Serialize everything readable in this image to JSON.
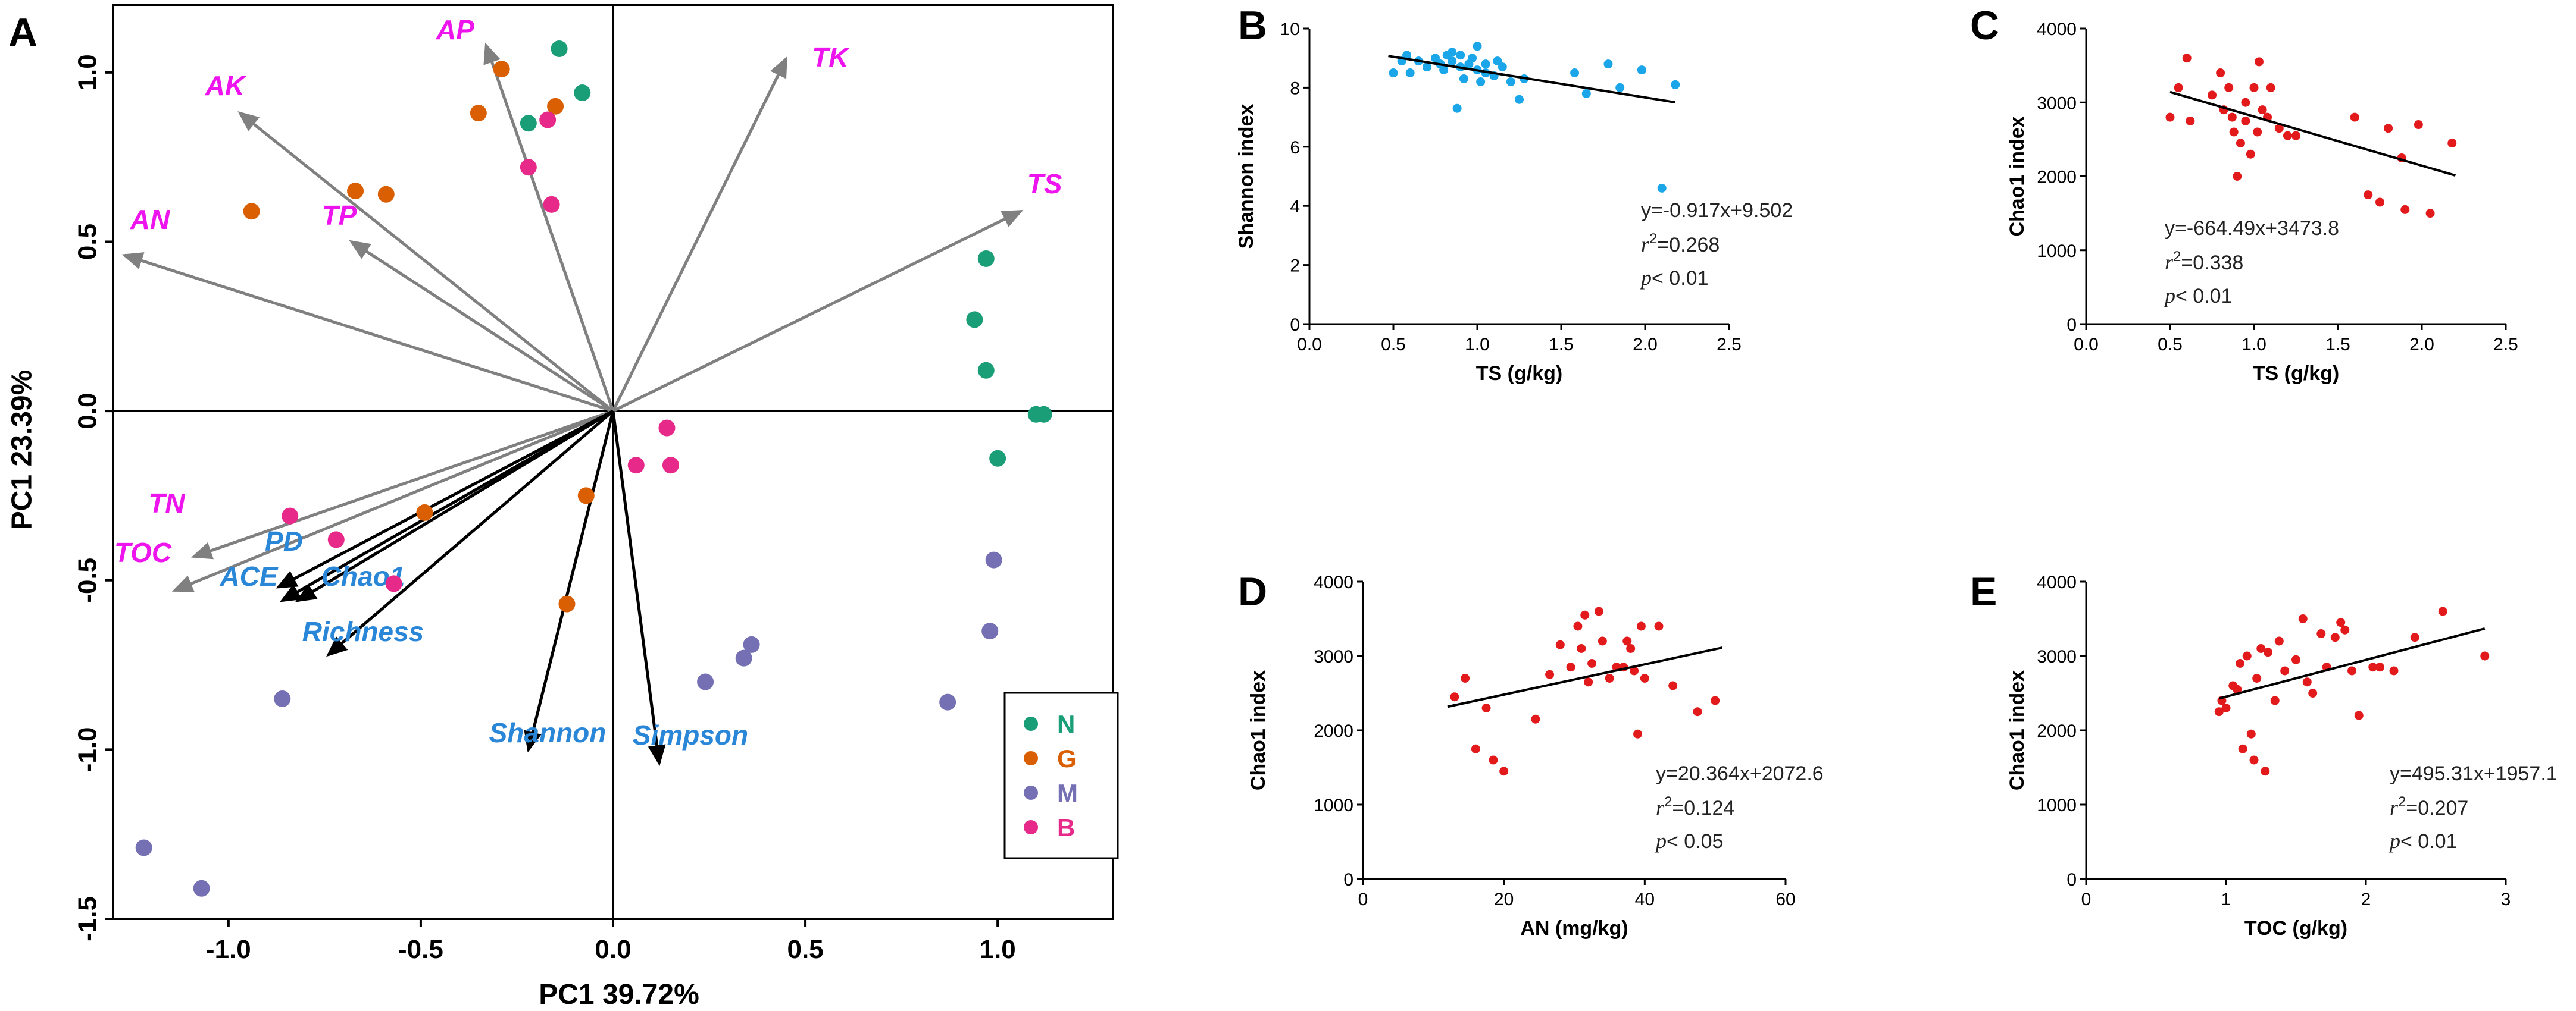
{
  "chart_data": [
    {
      "panel": "A",
      "type": "scatter",
      "subtype": "biplot",
      "xlabel": "PC1  39.72%",
      "ylabel": "PC1  23.39%",
      "xlim": [
        -1.3,
        1.3
      ],
      "ylim": [
        -1.5,
        1.2
      ],
      "xticks": [
        -1.0,
        -0.5,
        0.0,
        0.5,
        1.0
      ],
      "xtick_labels": [
        "-1.0",
        "-0.5",
        "0.0",
        "0.5",
        "1.0"
      ],
      "yticks": [
        -1.5,
        -1.0,
        -0.5,
        0.0,
        0.5,
        1.0
      ],
      "ytick_labels": [
        "-1.5",
        "-1.0",
        "-0.5",
        "0.0",
        "0.5",
        "1.0"
      ],
      "env_color": "#ee14ee",
      "div_color": "#2a86d6",
      "env_arrow_color": "#808080",
      "div_arrow_color": "#000000",
      "env_vectors": [
        {
          "name": "AP",
          "x": -0.33,
          "y": 1.08
        },
        {
          "name": "TK",
          "x": 0.45,
          "y": 1.04
        },
        {
          "name": "AK",
          "x": -0.97,
          "y": 0.88
        },
        {
          "name": "AN",
          "x": -1.27,
          "y": 0.46
        },
        {
          "name": "TP",
          "x": -0.68,
          "y": 0.5
        },
        {
          "name": "TS",
          "x": 1.06,
          "y": 0.59
        },
        {
          "name": "TN",
          "x": -1.09,
          "y": -0.43
        },
        {
          "name": "TOC",
          "x": -1.14,
          "y": -0.53
        }
      ],
      "env_labels": [
        "AP",
        "TK",
        "AK",
        "AN",
        "TP",
        "TS",
        "TN",
        "TOC"
      ],
      "div_vectors": [
        {
          "name": "PD",
          "x": -0.87,
          "y": -0.52
        },
        {
          "name": "ACE",
          "x": -0.86,
          "y": -0.56
        },
        {
          "name": "Chao1",
          "x": -0.82,
          "y": -0.56
        },
        {
          "name": "Richness",
          "x": -0.74,
          "y": -0.72
        },
        {
          "name": "Shannon",
          "x": -0.22,
          "y": -1.0
        },
        {
          "name": "Simpson",
          "x": 0.12,
          "y": -1.04
        }
      ],
      "div_labels": [
        "PD",
        "ACE",
        "Chao1",
        "Richness",
        "Shannon",
        "Simpson"
      ],
      "groups": [
        {
          "name": "N",
          "color": "#1a9e77",
          "points": [
            [
              -0.14,
              1.07
            ],
            [
              -0.08,
              0.94
            ],
            [
              -0.22,
              0.85
            ],
            [
              0.97,
              0.45
            ],
            [
              0.94,
              0.27
            ],
            [
              0.97,
              0.12
            ],
            [
              1.1,
              -0.01
            ],
            [
              1.12,
              -0.01
            ],
            [
              1.0,
              -0.14
            ]
          ]
        },
        {
          "name": "G",
          "color": "#d95f02",
          "points": [
            [
              -0.29,
              1.01
            ],
            [
              -0.15,
              0.9
            ],
            [
              -0.35,
              0.88
            ],
            [
              -0.67,
              0.65
            ],
            [
              -0.59,
              0.64
            ],
            [
              -0.94,
              0.59
            ],
            [
              -0.49,
              -0.3
            ],
            [
              -0.07,
              -0.25
            ],
            [
              -0.12,
              -0.57
            ]
          ]
        },
        {
          "name": "M",
          "color": "#7570b3",
          "points": [
            [
              0.99,
              -0.44
            ],
            [
              0.98,
              -0.65
            ],
            [
              0.36,
              -0.69
            ],
            [
              0.34,
              -0.73
            ],
            [
              0.24,
              -0.8
            ],
            [
              0.87,
              -0.86
            ],
            [
              -0.86,
              -0.85
            ],
            [
              -1.22,
              -1.29
            ],
            [
              -1.07,
              -1.41
            ]
          ]
        },
        {
          "name": "B",
          "color": "#e7298a",
          "points": [
            [
              -0.17,
              0.86
            ],
            [
              -0.22,
              0.72
            ],
            [
              -0.16,
              0.61
            ],
            [
              0.14,
              -0.05
            ],
            [
              0.06,
              -0.16
            ],
            [
              0.15,
              -0.16
            ],
            [
              -0.84,
              -0.31
            ],
            [
              -0.72,
              -0.38
            ],
            [
              -0.57,
              -0.51
            ]
          ]
        }
      ],
      "legend_position": "bottom-right"
    },
    {
      "panel": "B",
      "type": "scatter",
      "color": "#1aa6e8",
      "xlabel": "TS (g/kg)",
      "ylabel": "Shannon index",
      "xlim": [
        0,
        2.5
      ],
      "ylim": [
        0,
        10
      ],
      "xticks": [
        0.0,
        0.5,
        1.0,
        1.5,
        2.0,
        2.5
      ],
      "xtick_labels": [
        "0.0",
        "0.5",
        "1.0",
        "1.5",
        "2.0",
        "2.5"
      ],
      "yticks": [
        0,
        2,
        4,
        6,
        8,
        10
      ],
      "ytick_labels": [
        "0",
        "2",
        "4",
        "6",
        "8",
        "10"
      ],
      "fit": {
        "slope": -0.917,
        "intercept": 9.502,
        "x_range": [
          0.47,
          2.18
        ]
      },
      "equation": "y=-0.917x+9.502",
      "r2_base": "r",
      "r2_sup": "2",
      "r2_value": "=0.268",
      "p_label": "p",
      "p_value": "< 0.01",
      "points": [
        [
          0.5,
          8.5
        ],
        [
          0.55,
          8.9
        ],
        [
          0.58,
          9.1
        ],
        [
          0.6,
          8.5
        ],
        [
          0.65,
          8.9
        ],
        [
          0.7,
          8.7
        ],
        [
          0.75,
          9.0
        ],
        [
          0.78,
          8.8
        ],
        [
          0.8,
          8.6
        ],
        [
          0.82,
          9.1
        ],
        [
          0.85,
          8.9
        ],
        [
          0.85,
          9.2
        ],
        [
          0.88,
          7.3
        ],
        [
          0.9,
          8.7
        ],
        [
          0.9,
          9.1
        ],
        [
          0.92,
          8.3
        ],
        [
          0.95,
          8.8
        ],
        [
          0.97,
          9.0
        ],
        [
          1.0,
          8.6
        ],
        [
          1.0,
          9.4
        ],
        [
          1.02,
          8.2
        ],
        [
          1.05,
          8.8
        ],
        [
          1.05,
          8.5
        ],
        [
          1.1,
          8.4
        ],
        [
          1.12,
          8.9
        ],
        [
          1.15,
          8.7
        ],
        [
          1.2,
          8.2
        ],
        [
          1.25,
          7.6
        ],
        [
          1.28,
          8.3
        ],
        [
          1.58,
          8.5
        ],
        [
          1.65,
          7.8
        ],
        [
          1.78,
          8.8
        ],
        [
          1.85,
          8.0
        ],
        [
          1.98,
          8.6
        ],
        [
          2.1,
          4.6
        ],
        [
          2.18,
          8.1
        ]
      ]
    },
    {
      "panel": "C",
      "type": "scatter",
      "color": "#e31a1c",
      "xlabel": "TS (g/kg)",
      "ylabel": "Chao1 index",
      "xlim": [
        0,
        2.5
      ],
      "ylim": [
        0,
        4000
      ],
      "xticks": [
        0.0,
        0.5,
        1.0,
        1.5,
        2.0,
        2.5
      ],
      "xtick_labels": [
        "0.0",
        "0.5",
        "1.0",
        "1.5",
        "2.0",
        "2.5"
      ],
      "yticks": [
        0,
        1000,
        2000,
        3000,
        4000
      ],
      "ytick_labels": [
        "0",
        "1000",
        "2000",
        "3000",
        "4000"
      ],
      "fit": {
        "slope": -664.49,
        "intercept": 3473.8,
        "x_range": [
          0.5,
          2.2
        ]
      },
      "equation": "y=-664.49x+3473.8",
      "r2_base": "r",
      "r2_sup": "2",
      "r2_value": "=0.338",
      "p_label": "p",
      "p_value": "< 0.01",
      "points": [
        [
          0.5,
          2800
        ],
        [
          0.55,
          3200
        ],
        [
          0.6,
          3600
        ],
        [
          0.62,
          2750
        ],
        [
          0.75,
          3100
        ],
        [
          0.8,
          3400
        ],
        [
          0.82,
          2900
        ],
        [
          0.85,
          3200
        ],
        [
          0.87,
          2800
        ],
        [
          0.88,
          2600
        ],
        [
          0.9,
          2000
        ],
        [
          0.92,
          2450
        ],
        [
          0.95,
          2750
        ],
        [
          0.95,
          3000
        ],
        [
          0.98,
          2300
        ],
        [
          1.0,
          3200
        ],
        [
          1.02,
          2600
        ],
        [
          1.03,
          3550
        ],
        [
          1.05,
          2900
        ],
        [
          1.08,
          2800
        ],
        [
          1.1,
          3200
        ],
        [
          1.15,
          2650
        ],
        [
          1.2,
          2550
        ],
        [
          1.25,
          2550
        ],
        [
          1.6,
          2800
        ],
        [
          1.68,
          1750
        ],
        [
          1.75,
          1650
        ],
        [
          1.8,
          2650
        ],
        [
          1.88,
          2250
        ],
        [
          1.9,
          1550
        ],
        [
          1.98,
          2700
        ],
        [
          2.05,
          1500
        ],
        [
          2.18,
          2450
        ]
      ]
    },
    {
      "panel": "D",
      "type": "scatter",
      "color": "#e31a1c",
      "xlabel": "AN (mg/kg)",
      "ylabel": "Chao1 index",
      "xlim": [
        0,
        60
      ],
      "ylim": [
        0,
        4000
      ],
      "xticks": [
        0,
        20,
        40,
        60
      ],
      "xtick_labels": [
        "0",
        "20",
        "40",
        "60"
      ],
      "yticks": [
        0,
        1000,
        2000,
        3000,
        4000
      ],
      "ytick_labels": [
        "0",
        "1000",
        "2000",
        "3000",
        "4000"
      ],
      "fit": {
        "slope": 20.364,
        "intercept": 2072.6,
        "x_range": [
          12,
          51
        ]
      },
      "equation": "y=20.364x+2072.6",
      "r2_base": "r",
      "r2_sup": "2",
      "r2_value": "=0.124",
      "p_label": "p",
      "p_value": "< 0.05",
      "points": [
        [
          13,
          2450
        ],
        [
          14.5,
          2700
        ],
        [
          16,
          1750
        ],
        [
          17.5,
          2300
        ],
        [
          18.5,
          1600
        ],
        [
          20,
          1450
        ],
        [
          24.5,
          2150
        ],
        [
          26.5,
          2750
        ],
        [
          28,
          3150
        ],
        [
          29.5,
          2850
        ],
        [
          30.5,
          3400
        ],
        [
          31,
          3100
        ],
        [
          31.5,
          3550
        ],
        [
          32,
          2650
        ],
        [
          32.5,
          2900
        ],
        [
          33.5,
          3600
        ],
        [
          34,
          3200
        ],
        [
          35,
          2700
        ],
        [
          36,
          2850
        ],
        [
          37,
          2850
        ],
        [
          37.5,
          3200
        ],
        [
          38,
          3100
        ],
        [
          38.5,
          2800
        ],
        [
          39,
          1950
        ],
        [
          39.5,
          3400
        ],
        [
          40,
          2700
        ],
        [
          42,
          3400
        ],
        [
          44,
          2600
        ],
        [
          47.5,
          2250
        ],
        [
          50,
          2400
        ]
      ]
    },
    {
      "panel": "E",
      "type": "scatter",
      "color": "#e31a1c",
      "xlabel": "TOC (g/kg)",
      "ylabel": "Chao1 index",
      "xlim": [
        0,
        3
      ],
      "ylim": [
        0,
        4000
      ],
      "xticks": [
        0,
        1,
        2,
        3
      ],
      "xtick_labels": [
        "0",
        "1",
        "2",
        "3"
      ],
      "yticks": [
        0,
        1000,
        2000,
        3000,
        4000
      ],
      "ytick_labels": [
        "0",
        "1000",
        "2000",
        "3000",
        "4000"
      ],
      "fit": {
        "slope": 495.31,
        "intercept": 1957.1,
        "x_range": [
          0.95,
          2.85
        ]
      },
      "equation": "y=495.31x+1957.1",
      "r2_base": "r",
      "r2_sup": "2",
      "r2_value": "=0.207",
      "p_label": "p",
      "p_value": "< 0.01",
      "points": [
        [
          0.95,
          2250
        ],
        [
          0.97,
          2400
        ],
        [
          1.0,
          2300
        ],
        [
          1.05,
          2600
        ],
        [
          1.08,
          2550
        ],
        [
          1.1,
          2900
        ],
        [
          1.12,
          1750
        ],
        [
          1.15,
          3000
        ],
        [
          1.18,
          1950
        ],
        [
          1.2,
          1600
        ],
        [
          1.22,
          2700
        ],
        [
          1.25,
          3100
        ],
        [
          1.28,
          1450
        ],
        [
          1.3,
          3050
        ],
        [
          1.35,
          2400
        ],
        [
          1.38,
          3200
        ],
        [
          1.42,
          2800
        ],
        [
          1.5,
          2950
        ],
        [
          1.55,
          3500
        ],
        [
          1.58,
          2650
        ],
        [
          1.62,
          2500
        ],
        [
          1.68,
          3300
        ],
        [
          1.72,
          2850
        ],
        [
          1.78,
          3250
        ],
        [
          1.82,
          3450
        ],
        [
          1.85,
          3350
        ],
        [
          1.9,
          2800
        ],
        [
          1.95,
          2200
        ],
        [
          2.05,
          2850
        ],
        [
          2.1,
          2850
        ],
        [
          2.2,
          2800
        ],
        [
          2.35,
          3250
        ],
        [
          2.55,
          3600
        ],
        [
          2.85,
          3000
        ]
      ]
    }
  ]
}
